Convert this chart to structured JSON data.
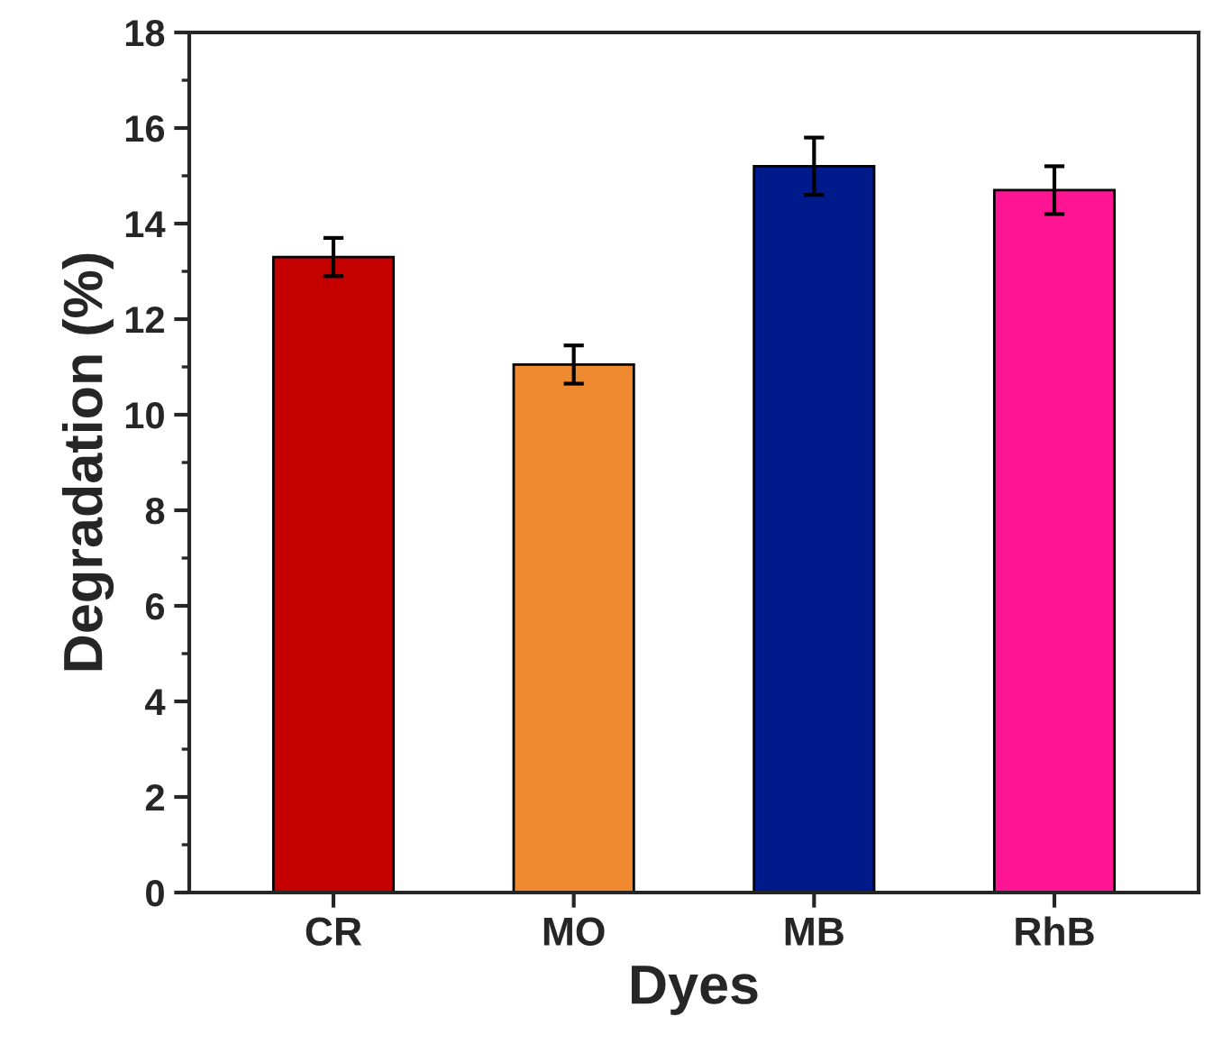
{
  "chart_data": {
    "type": "bar",
    "xlabel": "Dyes",
    "ylabel": "Degradation (%)",
    "categories": [
      "CR",
      "MO",
      "MB",
      "RhB"
    ],
    "values": [
      13.3,
      11.05,
      15.2,
      14.7
    ],
    "errors": [
      0.4,
      0.4,
      0.6,
      0.5
    ],
    "colors": [
      "#c40000",
      "#f08a30",
      "#001a8c",
      "#ff1493"
    ],
    "ylim": [
      0,
      18
    ],
    "yticks": [
      0,
      2,
      4,
      6,
      8,
      10,
      12,
      14,
      16,
      18
    ],
    "grid": false,
    "legend": false
  }
}
